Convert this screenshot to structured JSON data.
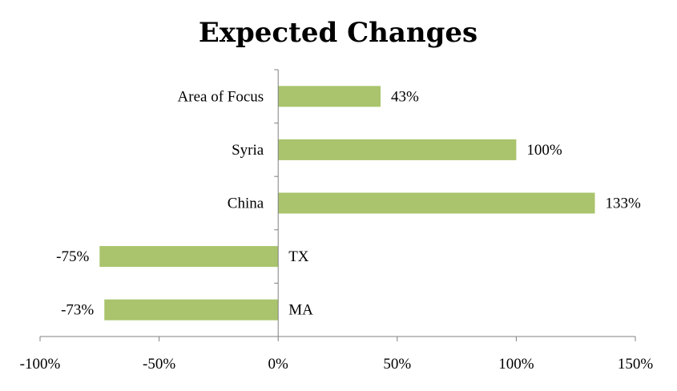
{
  "chart_data": {
    "type": "bar",
    "orientation": "horizontal",
    "title": "Expected Changes",
    "categories": [
      "Area of Focus",
      "Syria",
      "China",
      "TX",
      "MA"
    ],
    "values": [
      43,
      100,
      133,
      -75,
      -73
    ],
    "value_labels": [
      "43%",
      "100%",
      "133%",
      "-75%",
      "-73%"
    ],
    "xlim": [
      -100,
      150
    ],
    "x_ticks": [
      -100,
      -50,
      0,
      50,
      100,
      150
    ],
    "x_tick_labels": [
      "-100%",
      "-50%",
      "0%",
      "50%",
      "100%",
      "150%"
    ],
    "bar_color": "#a9c46c",
    "grid": false,
    "legend": "none"
  }
}
